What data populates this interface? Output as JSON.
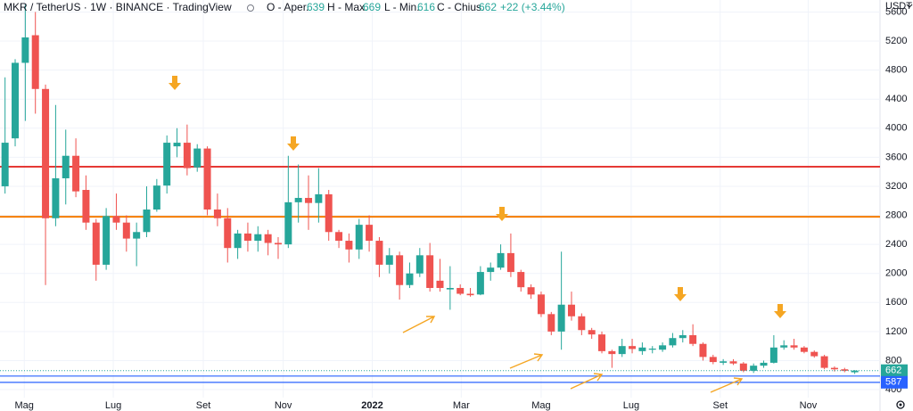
{
  "chart_data": {
    "type": "candlestick",
    "title": "MKR / TetherUS · 1W · BINANCE · TradingView",
    "ohlc_labels": [
      "O - Aper.",
      "H - Max.",
      "L - Min.",
      "C - Chius."
    ],
    "change": "+22 (+3.44%)",
    "unit": "USDT",
    "up_color": "#26a69a",
    "down_color": "#ef5350",
    "open": [
      3200,
      3860,
      4900,
      5280,
      4540,
      2760,
      3310,
      3620,
      3150,
      2700,
      2120,
      2790,
      2700,
      2480,
      2570,
      2880,
      3210,
      3750,
      3800,
      3460,
      3720,
      2880,
      2760,
      2350,
      2550,
      2450,
      2540,
      2420,
      2400,
      2980,
      3040,
      2970,
      3090,
      2570,
      2450,
      2330,
      2670,
      2450,
      2120,
      2250,
      1840,
      2000,
      2250,
      1900,
      1780,
      1800,
      1720,
      1710,
      2020,
      2080,
      2280,
      2020,
      1810,
      1710,
      1440,
      1200,
      1570,
      1410,
      1220,
      1160,
      930,
      890,
      1000,
      930,
      950,
      950,
      1010,
      1110,
      1150,
      1030,
      850,
      770,
      790,
      760,
      660,
      730,
      770,
      980,
      1010,
      980,
      920,
      860,
      700,
      680,
      639
    ],
    "high": [
      4700,
      4950,
      5700,
      5600,
      4600,
      4320,
      3980,
      3860,
      3350,
      2750,
      2900,
      3100,
      2800,
      2700,
      3200,
      3300,
      3900,
      4000,
      4050,
      3780,
      3750,
      3100,
      2900,
      2600,
      2700,
      2650,
      2600,
      2500,
      3620,
      3500,
      3350,
      3450,
      3150,
      2600,
      2550,
      2750,
      2800,
      2500,
      2350,
      2300,
      2150,
      2350,
      2420,
      2200,
      2100,
      1850,
      1800,
      2100,
      2150,
      2400,
      2550,
      2050,
      1850,
      1750,
      1470,
      2300,
      1750,
      1450,
      1250,
      1200,
      950,
      1100,
      1100,
      1050,
      1000,
      1050,
      1180,
      1220,
      1300,
      1050,
      880,
      820,
      820,
      780,
      760,
      800,
      1150,
      1080,
      1100,
      1000,
      940,
      880,
      720,
      700,
      669
    ],
    "low": [
      3100,
      3750,
      4100,
      4200,
      1840,
      2650,
      2950,
      3050,
      2600,
      1900,
      2050,
      2600,
      2300,
      2100,
      2500,
      2850,
      3100,
      3600,
      3350,
      3400,
      2800,
      2650,
      2150,
      2200,
      2300,
      2300,
      2250,
      2200,
      2350,
      2700,
      2600,
      2700,
      2450,
      2350,
      2150,
      2200,
      2300,
      1950,
      2000,
      1640,
      1800,
      1950,
      1750,
      1750,
      1500,
      1700,
      1680,
      1700,
      1900,
      2050,
      1950,
      1750,
      1650,
      1400,
      1150,
      950,
      1350,
      1150,
      1100,
      900,
      700,
      850,
      900,
      880,
      900,
      920,
      980,
      1050,
      1000,
      800,
      750,
      740,
      740,
      640,
      630,
      700,
      760,
      950,
      950,
      900,
      840,
      680,
      650,
      640,
      616
    ],
    "close": [
      3800,
      4900,
      5250,
      4540,
      2760,
      3310,
      3620,
      3130,
      2700,
      2120,
      2790,
      2700,
      2480,
      2570,
      2880,
      3210,
      3800,
      3800,
      3450,
      3720,
      2880,
      2760,
      2350,
      2550,
      2450,
      2540,
      2420,
      2400,
      2980,
      3040,
      2970,
      3090,
      2570,
      2450,
      2330,
      2670,
      2450,
      2120,
      2250,
      1840,
      2000,
      2250,
      1800,
      1800,
      1800,
      1720,
      1700,
      2020,
      2080,
      2280,
      2020,
      1810,
      1710,
      1440,
      1200,
      1570,
      1410,
      1220,
      1160,
      930,
      890,
      1000,
      960,
      980,
      965,
      1010,
      1110,
      1150,
      1030,
      850,
      780,
      790,
      760,
      660,
      730,
      770,
      980,
      1010,
      980,
      920,
      860,
      700,
      680,
      660,
      662
    ],
    "ylim": [
      290,
      5765
    ],
    "yticks": [
      400,
      800,
      1200,
      1600,
      2000,
      2400,
      2800,
      3200,
      3600,
      4000,
      4400,
      4800,
      5200,
      5600
    ],
    "xlim": [
      -0.5,
      86.5
    ],
    "xticks": [
      {
        "value": 1.9,
        "label": "Mag"
      },
      {
        "value": 10.7,
        "label": "Lug"
      },
      {
        "value": 19.6,
        "label": "Set"
      },
      {
        "value": 27.5,
        "label": "Nov"
      },
      {
        "value": 36.3,
        "label": "2022"
      },
      {
        "value": 45.1,
        "label": "Mar"
      },
      {
        "value": 53,
        "label": "Mag"
      },
      {
        "value": 61.9,
        "label": "Lug"
      },
      {
        "value": 70.7,
        "label": "Set"
      },
      {
        "value": 79.4,
        "label": "Nov"
      }
    ],
    "hlines": [
      {
        "value": 3470,
        "color": "#e53935"
      },
      {
        "value": 2780,
        "color": "#f57c00"
      },
      {
        "value": 587,
        "color": "#2962ff"
      },
      {
        "value": 500,
        "color": "#2962ff"
      }
    ],
    "grid": true
  }
}
